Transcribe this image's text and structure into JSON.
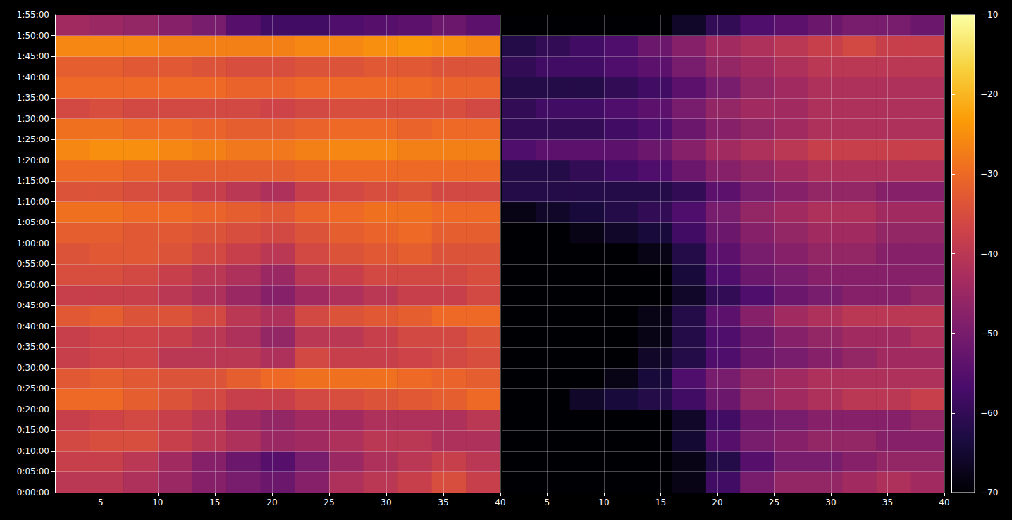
{
  "chart_data": {
    "type": "heatmap",
    "grid": true,
    "ylim": [
      0,
      115
    ],
    "yticks": [
      {
        "value": 0,
        "label": "0:00:00"
      },
      {
        "value": 5,
        "label": "0:05:00"
      },
      {
        "value": 10,
        "label": "0:10:00"
      },
      {
        "value": 15,
        "label": "0:15:00"
      },
      {
        "value": 20,
        "label": "0:20:00"
      },
      {
        "value": 25,
        "label": "0:25:00"
      },
      {
        "value": 30,
        "label": "0:30:00"
      },
      {
        "value": 35,
        "label": "0:35:00"
      },
      {
        "value": 40,
        "label": "0:40:00"
      },
      {
        "value": 45,
        "label": "0:45:00"
      },
      {
        "value": 50,
        "label": "0:50:00"
      },
      {
        "value": 55,
        "label": "0:55:00"
      },
      {
        "value": 60,
        "label": "1:00:00"
      },
      {
        "value": 65,
        "label": "1:05:00"
      },
      {
        "value": 70,
        "label": "1:10:00"
      },
      {
        "value": 75,
        "label": "1:15:00"
      },
      {
        "value": 80,
        "label": "1:20:00"
      },
      {
        "value": 85,
        "label": "1:25:00"
      },
      {
        "value": 90,
        "label": "1:30:00"
      },
      {
        "value": 95,
        "label": "1:35:00"
      },
      {
        "value": 100,
        "label": "1:40:00"
      },
      {
        "value": 105,
        "label": "1:45:00"
      },
      {
        "value": 110,
        "label": "1:50:00"
      },
      {
        "value": 115,
        "label": "1:55:00"
      }
    ],
    "y_edges": [
      0,
      5,
      10,
      15,
      20,
      25,
      30,
      35,
      40,
      45,
      50,
      55,
      60,
      65,
      70,
      75,
      80,
      85,
      90,
      95,
      100,
      105,
      110,
      115
    ],
    "colorbar": {
      "range": [
        -70,
        -10
      ],
      "ticks": [
        {
          "value": -70,
          "label": "−70"
        },
        {
          "value": -60,
          "label": "−60"
        },
        {
          "value": -50,
          "label": "−50"
        },
        {
          "value": -40,
          "label": "−40"
        },
        {
          "value": -30,
          "label": "−30"
        },
        {
          "value": -20,
          "label": "−20"
        },
        {
          "value": -10,
          "label": "−10"
        }
      ]
    },
    "panels": [
      {
        "xlim": [
          1,
          40
        ],
        "xticks": [
          5,
          10,
          15,
          20,
          25,
          30,
          35,
          40
        ],
        "x_edges": [
          1,
          4,
          7,
          10,
          13,
          16,
          19,
          22,
          25,
          28,
          31,
          34,
          37,
          40
        ],
        "cells": [
          [
            -40,
            -40,
            -42,
            -45,
            -48,
            -50,
            -52,
            -48,
            -42,
            -40,
            -38,
            -35,
            -38
          ],
          [
            -38,
            -38,
            -40,
            -44,
            -48,
            -52,
            -55,
            -50,
            -45,
            -42,
            -40,
            -38,
            -40
          ],
          [
            -36,
            -35,
            -35,
            -38,
            -40,
            -42,
            -45,
            -44,
            -42,
            -40,
            -40,
            -42,
            -42
          ],
          [
            -38,
            -37,
            -36,
            -38,
            -40,
            -44,
            -46,
            -44,
            -44,
            -42,
            -42,
            -42,
            -40
          ],
          [
            -30,
            -30,
            -32,
            -34,
            -36,
            -38,
            -38,
            -36,
            -35,
            -34,
            -33,
            -32,
            -30
          ],
          [
            -33,
            -32,
            -33,
            -34,
            -34,
            -32,
            -30,
            -29,
            -29,
            -29,
            -30,
            -31,
            -32
          ],
          [
            -38,
            -37,
            -37,
            -40,
            -40,
            -40,
            -42,
            -36,
            -38,
            -38,
            -37,
            -36,
            -35
          ],
          [
            -38,
            -37,
            -37,
            -38,
            -40,
            -42,
            -46,
            -40,
            -40,
            -38,
            -36,
            -36,
            -34
          ],
          [
            -33,
            -32,
            -34,
            -34,
            -36,
            -40,
            -42,
            -36,
            -34,
            -33,
            -32,
            -30,
            -30
          ],
          [
            -38,
            -38,
            -38,
            -40,
            -42,
            -45,
            -48,
            -44,
            -42,
            -40,
            -38,
            -38,
            -36
          ],
          [
            -35,
            -35,
            -36,
            -38,
            -40,
            -42,
            -45,
            -40,
            -38,
            -36,
            -36,
            -36,
            -35
          ],
          [
            -34,
            -33,
            -33,
            -34,
            -36,
            -38,
            -40,
            -36,
            -34,
            -33,
            -32,
            -34,
            -34
          ],
          [
            -32,
            -32,
            -33,
            -33,
            -34,
            -35,
            -36,
            -34,
            -32,
            -31,
            -30,
            -32,
            -32
          ],
          [
            -29,
            -29,
            -30,
            -30,
            -31,
            -32,
            -33,
            -31,
            -30,
            -29,
            -29,
            -30,
            -30
          ],
          [
            -34,
            -34,
            -35,
            -36,
            -38,
            -40,
            -42,
            -38,
            -36,
            -35,
            -34,
            -36,
            -36
          ],
          [
            -30,
            -30,
            -31,
            -32,
            -32,
            -32,
            -32,
            -31,
            -30,
            -30,
            -30,
            -30,
            -30
          ],
          [
            -26,
            -25,
            -25,
            -26,
            -27,
            -28,
            -28,
            -27,
            -26,
            -26,
            -27,
            -27,
            -27
          ],
          [
            -29,
            -29,
            -30,
            -30,
            -31,
            -32,
            -32,
            -31,
            -30,
            -30,
            -31,
            -30,
            -30
          ],
          [
            -36,
            -35,
            -36,
            -36,
            -36,
            -36,
            -37,
            -36,
            -35,
            -35,
            -35,
            -35,
            -36
          ],
          [
            -30,
            -30,
            -30,
            -30,
            -30,
            -31,
            -31,
            -30,
            -30,
            -30,
            -30,
            -31,
            -31
          ],
          [
            -32,
            -32,
            -33,
            -33,
            -34,
            -35,
            -35,
            -34,
            -34,
            -33,
            -33,
            -34,
            -34
          ],
          [
            -26,
            -26,
            -26,
            -27,
            -27,
            -27,
            -27,
            -26,
            -26,
            -25,
            -24,
            -25,
            -26
          ],
          [
            -44,
            -45,
            -46,
            -48,
            -50,
            -55,
            -58,
            -58,
            -56,
            -55,
            -54,
            -52,
            -54
          ]
        ]
      },
      {
        "xlim": [
          1,
          40
        ],
        "xticks": [
          5,
          10,
          15,
          20,
          25,
          30,
          35,
          40
        ],
        "x_edges": [
          1,
          4,
          7,
          10,
          13,
          16,
          19,
          22,
          25,
          28,
          31,
          34,
          37,
          40
        ],
        "cells": [
          [
            -70,
            -70,
            -70,
            -70,
            -70,
            -68,
            -58,
            -50,
            -46,
            -46,
            -44,
            -42,
            -44
          ],
          [
            -70,
            -70,
            -70,
            -70,
            -70,
            -68,
            -62,
            -55,
            -50,
            -50,
            -48,
            -46,
            -46
          ],
          [
            -70,
            -70,
            -70,
            -70,
            -70,
            -65,
            -55,
            -50,
            -48,
            -46,
            -46,
            -48,
            -48
          ],
          [
            -70,
            -70,
            -70,
            -70,
            -70,
            -66,
            -58,
            -52,
            -50,
            -48,
            -48,
            -48,
            -46
          ],
          [
            -70,
            -70,
            -66,
            -64,
            -62,
            -58,
            -52,
            -46,
            -44,
            -42,
            -40,
            -40,
            -38
          ],
          [
            -70,
            -70,
            -70,
            -68,
            -64,
            -56,
            -50,
            -46,
            -44,
            -42,
            -42,
            -42,
            -42
          ],
          [
            -70,
            -70,
            -70,
            -70,
            -66,
            -62,
            -56,
            -52,
            -50,
            -48,
            -46,
            -44,
            -44
          ],
          [
            -70,
            -70,
            -70,
            -70,
            -68,
            -62,
            -56,
            -52,
            -48,
            -46,
            -44,
            -44,
            -42
          ],
          [
            -70,
            -70,
            -70,
            -70,
            -68,
            -62,
            -54,
            -48,
            -44,
            -42,
            -40,
            -40,
            -40
          ],
          [
            -70,
            -70,
            -70,
            -70,
            -70,
            -66,
            -60,
            -56,
            -52,
            -50,
            -48,
            -48,
            -46
          ],
          [
            -70,
            -70,
            -70,
            -70,
            -70,
            -64,
            -56,
            -52,
            -50,
            -48,
            -48,
            -48,
            -48
          ],
          [
            -70,
            -70,
            -70,
            -70,
            -68,
            -62,
            -54,
            -50,
            -48,
            -46,
            -46,
            -48,
            -48
          ],
          [
            -70,
            -70,
            -68,
            -66,
            -64,
            -58,
            -52,
            -48,
            -46,
            -44,
            -44,
            -46,
            -46
          ],
          [
            -68,
            -66,
            -64,
            -62,
            -60,
            -56,
            -50,
            -46,
            -44,
            -42,
            -42,
            -44,
            -44
          ],
          [
            -62,
            -62,
            -62,
            -62,
            -62,
            -60,
            -54,
            -50,
            -48,
            -46,
            -46,
            -48,
            -48
          ],
          [
            -62,
            -62,
            -60,
            -58,
            -56,
            -52,
            -48,
            -46,
            -44,
            -42,
            -42,
            -42,
            -42
          ],
          [
            -56,
            -54,
            -54,
            -54,
            -52,
            -48,
            -44,
            -42,
            -40,
            -38,
            -38,
            -38,
            -38
          ],
          [
            -60,
            -60,
            -60,
            -58,
            -56,
            -52,
            -48,
            -46,
            -44,
            -42,
            -42,
            -42,
            -42
          ],
          [
            -60,
            -58,
            -58,
            -56,
            -54,
            -50,
            -46,
            -44,
            -44,
            -42,
            -42,
            -42,
            -42
          ],
          [
            -62,
            -62,
            -62,
            -60,
            -58,
            -54,
            -50,
            -46,
            -44,
            -42,
            -42,
            -42,
            -42
          ],
          [
            -60,
            -58,
            -58,
            -56,
            -54,
            -50,
            -46,
            -44,
            -42,
            -40,
            -40,
            -40,
            -40
          ],
          [
            -62,
            -60,
            -58,
            -56,
            -52,
            -48,
            -44,
            -42,
            -40,
            -38,
            -36,
            -38,
            -38
          ],
          [
            -70,
            -70,
            -70,
            -70,
            -70,
            -66,
            -60,
            -56,
            -54,
            -52,
            -50,
            -50,
            -52
          ]
        ]
      }
    ]
  }
}
